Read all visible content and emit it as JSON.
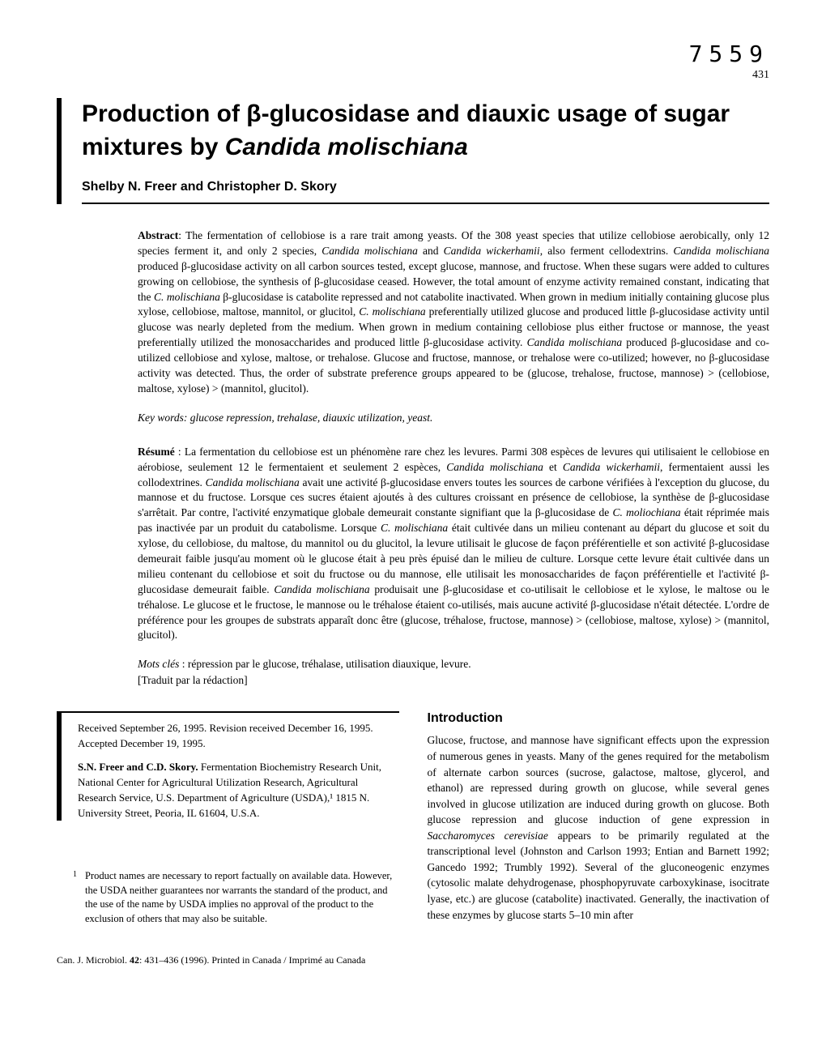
{
  "header": {
    "doc_number": "7559",
    "page_number": "431"
  },
  "title_pre": "Production of β-glucosidase and diauxic usage of sugar mixtures by ",
  "title_species": "Candida molischiana",
  "authors": "Shelby N. Freer and Christopher D. Skory",
  "abstract": {
    "label": "Abstract",
    "text_1": ": The fermentation of cellobiose is a rare trait among yeasts. Of the 308 yeast species that utilize cellobiose aerobically, only 12 species ferment it, and only 2 species, ",
    "sp1": "Candida molischiana",
    "text_2": " and ",
    "sp2": "Candida wickerhamii",
    "text_3": ", also ferment cellodextrins. ",
    "sp3": "Candida molischiana",
    "text_4": " produced β-glucosidase activity on all carbon sources tested, except glucose, mannose, and fructose. When these sugars were added to cultures growing on cellobiose, the synthesis of β-glucosidase ceased. However, the total amount of enzyme activity remained constant, indicating that the ",
    "sp4": "C. molischiana",
    "text_5": " β-glucosidase is catabolite repressed and not catabolite inactivated. When grown in medium initially containing glucose plus xylose, cellobiose, maltose, mannitol, or glucitol, ",
    "sp5": "C. molischiana",
    "text_6": " preferentially utilized glucose and produced little β-glucosidase activity until glucose was nearly depleted from the medium. When grown in medium containing cellobiose plus either fructose or mannose, the yeast preferentially utilized the monosaccharides and produced little β-glucosidase activity. ",
    "sp6": "Candida molischiana",
    "text_7": " produced β-glucosidase and co-utilized cellobiose and xylose, maltose, or trehalose. Glucose and fructose, mannose, or trehalose were co-utilized; however, no β-glucosidase activity was detected. Thus, the order of substrate preference groups appeared to be (glucose, trehalose, fructose, mannose) > (cellobiose, maltose, xylose) > (mannitol, glucitol)."
  },
  "keywords": {
    "label": "Key words",
    "text": ": glucose repression, trehalase, diauxic utilization, yeast."
  },
  "resume": {
    "label": "Résumé",
    "text_1": " : La fermentation du cellobiose est un phénomène rare chez les levures. Parmi 308 espèces de levures qui utilisaient le cellobiose en aérobiose, seulement 12 le fermentaient et seulement 2 espèces, ",
    "sp1": "Candida molischiana",
    "text_2": " et ",
    "sp2": "Candida wickerhamii",
    "text_3": ", fermentaient aussi les collodextrines. ",
    "sp3": "Candida molischiana",
    "text_4": " avait une activité β-glucosidase envers toutes les sources de carbone vérifiées à l'exception du glucose, du mannose et du fructose. Lorsque ces sucres étaient ajoutés à des cultures croissant en présence de cellobiose, la synthèse de β-glucosidase s'arrêtait. Par contre, l'activité enzymatique globale demeurait constante signifiant que la β-glucosidase de ",
    "sp4": "C. moliochiana",
    "text_5": " était réprimée mais pas inactivée par un produit du catabolisme. Lorsque ",
    "sp5": "C. molischiana",
    "text_6": " était cultivée dans un milieu contenant au départ du glucose et soit du xylose, du cellobiose, du maltose, du mannitol ou du glucitol, la levure utilisait le glucose de façon préférentielle et son activité β-glucosidase demeurait faible jusqu'au moment où le glucose était à peu près épuisé dan le milieu de culture. Lorsque cette levure était cultivée dans un milieu contenant du cellobiose et soit du fructose ou du mannose, elle utilisait les monosaccharides de façon préférentielle et l'activité β-glucosidase demeurait faible. ",
    "sp6": "Candida molischiana",
    "text_7": " produisait une β-glucosidase et co-utilisait le cellobiose et le xylose, le maltose ou le tréhalose. Le glucose et le fructose, le mannose ou le tréhalose étaient co-utilisés, mais aucune activité β-glucosidase n'était détectée. L'ordre de préférence pour les groupes de substrats apparaît donc être (glucose, tréhalose, fructose, mannose) > (cellobiose, maltose, xylose) > (mannitol, glucitol)."
  },
  "motscles": {
    "label": "Mots clés",
    "text": " : répression par le glucose, tréhalase, utilisation diauxique, levure."
  },
  "translation": "[Traduit par la rédaction]",
  "received": {
    "dates": "Received September 26, 1995. Revision received December 16, 1995. Accepted December 19, 1995.",
    "authors": "S.N. Freer and C.D. Skory.",
    "affiliation": " Fermentation Biochemistry Research Unit, National Center for Agricultural Utilization Research, Agricultural Research Service, U.S. Department of Agriculture (USDA),¹ 1815 N. University Street, Peoria, IL 61604, U.S.A."
  },
  "footnote": {
    "num": "1",
    "text": "Product names are necessary to report factually on available data. However, the USDA neither guarantees nor warrants the standard of the product, and the use of the name by USDA implies no approval of the product to the exclusion of others that may also be suitable."
  },
  "intro": {
    "heading": "Introduction",
    "text_1": "Glucose, fructose, and mannose have significant effects upon the expression of numerous genes in yeasts. Many of the genes required for the metabolism of alternate carbon sources (sucrose, galactose, maltose, glycerol, and ethanol) are repressed during growth on glucose, while several genes involved in glucose utilization are induced during growth on glucose. Both glucose repression and glucose induction of gene expression in ",
    "sp1": "Saccharomyces cerevisiae",
    "text_2": " appears to be primarily regulated at the transcriptional level (Johnston and Carlson 1993; Entian and Barnett 1992; Gancedo 1992; Trumbly 1992). Several of the gluconeogenic enzymes (cytosolic malate dehydrogenase, phosphopyruvate carboxykinase, isocitrate lyase, etc.) are glucose (catabolite) inactivated. Generally, the inactivation of these enzymes by glucose starts 5–10 min after"
  },
  "footer": {
    "journal": "Can. J. Microbiol. ",
    "volume": "42",
    "pages": ": 431–436 (1996).",
    "printed": "   Printed in Canada / Imprimé au Canada"
  }
}
